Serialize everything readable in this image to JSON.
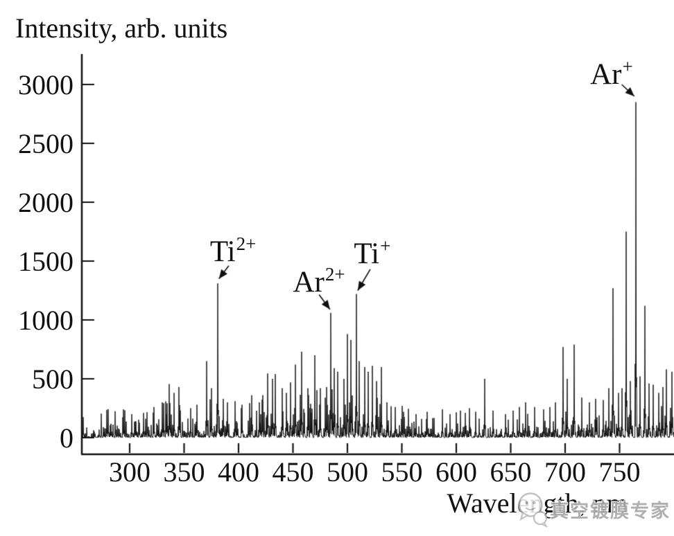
{
  "figure": {
    "type_note": "emission spectrum, single noisy trace, black on white, no grid, no legend"
  },
  "watermark": {
    "text": "真空镀膜专家",
    "icon": "wechat-chat-bubble-icon",
    "color": "#aaaaaa"
  },
  "chart_data": {
    "type": "line",
    "title": "",
    "ylabel": "Intensity, arb. units",
    "xlabel": "Wavelength, nm",
    "xlim": [
      256,
      800
    ],
    "ylim": [
      0,
      3260
    ],
    "xticks": [
      300,
      350,
      400,
      450,
      500,
      550,
      600,
      650,
      700,
      750
    ],
    "yticks": [
      0,
      500,
      1000,
      1500,
      2000,
      2500,
      3000
    ],
    "grid": false,
    "legend": null,
    "labeled_peaks": [
      {
        "id": "ti2plus",
        "label_base": "Ti",
        "label_sup": "2+",
        "wavelength": 381,
        "intensity": 1310,
        "label_at": {
          "wavelength": 373.8,
          "intensity": 1705
        },
        "arrow": {
          "from": {
            "wavelength": 391,
            "intensity": 1460
          },
          "to": {
            "wavelength": 382,
            "intensity": 1350
          }
        }
      },
      {
        "id": "ar2plus",
        "label_base": "Ar",
        "label_sup": "2+",
        "wavelength": 485,
        "intensity": 1060,
        "label_at": {
          "wavelength": 450,
          "intensity": 1450
        },
        "arrow": {
          "from": {
            "wavelength": 474,
            "intensity": 1215
          },
          "to": {
            "wavelength": 484,
            "intensity": 1090
          }
        }
      },
      {
        "id": "tiplus",
        "label_base": "Ti",
        "label_sup": "+",
        "wavelength": 508,
        "intensity": 1220,
        "label_at": {
          "wavelength": 506,
          "intensity": 1690
        },
        "arrow": {
          "from": {
            "wavelength": 521,
            "intensity": 1430
          },
          "to": {
            "wavelength": 509.5,
            "intensity": 1250
          }
        }
      },
      {
        "id": "arplus",
        "label_base": "Ar",
        "label_sup": "+",
        "wavelength": 765,
        "intensity": 2850,
        "label_at": {
          "wavelength": 723,
          "intensity": 3210
        },
        "arrow": {
          "from": {
            "wavelength": 752,
            "intensity": 3000
          },
          "to": {
            "wavelength": 763.5,
            "intensity": 2900
          }
        }
      }
    ],
    "secondary_peaks": [
      [
        294,
        240
      ],
      [
        302,
        200
      ],
      [
        313,
        210
      ],
      [
        322,
        260
      ],
      [
        330,
        300
      ],
      [
        336,
        455
      ],
      [
        341,
        380
      ],
      [
        345,
        430
      ],
      [
        356,
        250
      ],
      [
        362,
        280
      ],
      [
        371,
        650
      ],
      [
        375,
        420
      ],
      [
        386,
        330
      ],
      [
        390,
        300
      ],
      [
        397,
        310
      ],
      [
        403,
        280
      ],
      [
        412,
        360
      ],
      [
        419,
        300
      ],
      [
        427,
        545
      ],
      [
        431,
        500
      ],
      [
        434,
        540
      ],
      [
        440,
        420
      ],
      [
        444,
        380
      ],
      [
        448,
        470
      ],
      [
        452,
        620
      ],
      [
        458,
        730
      ],
      [
        464,
        420
      ],
      [
        470,
        700
      ],
      [
        475,
        420
      ],
      [
        481,
        430
      ],
      [
        488,
        590
      ],
      [
        491,
        560
      ],
      [
        497,
        500
      ],
      [
        500,
        880
      ],
      [
        503,
        830
      ],
      [
        511,
        650
      ],
      [
        516,
        600
      ],
      [
        519,
        560
      ],
      [
        523,
        610
      ],
      [
        527,
        480
      ],
      [
        531,
        600
      ],
      [
        536,
        300
      ],
      [
        544,
        260
      ],
      [
        556,
        245
      ],
      [
        563,
        200
      ],
      [
        573,
        220
      ],
      [
        587,
        240
      ],
      [
        594,
        200
      ],
      [
        604,
        230
      ],
      [
        612,
        250
      ],
      [
        618,
        220
      ],
      [
        626,
        500
      ],
      [
        634,
        230
      ],
      [
        645,
        200
      ],
      [
        652,
        230
      ],
      [
        658,
        260
      ],
      [
        664,
        300
      ],
      [
        672,
        260
      ],
      [
        680,
        240
      ],
      [
        686,
        260
      ],
      [
        691,
        300
      ],
      [
        698,
        770
      ],
      [
        702,
        500
      ],
      [
        708,
        790
      ],
      [
        715,
        340
      ],
      [
        722,
        300
      ],
      [
        728,
        330
      ],
      [
        735,
        320
      ],
      [
        740,
        420
      ],
      [
        744,
        1270
      ],
      [
        749,
        380
      ],
      [
        752,
        420
      ],
      [
        756,
        1750
      ],
      [
        760,
        480
      ],
      [
        769,
        520
      ],
      [
        773,
        1120
      ],
      [
        777,
        460
      ],
      [
        781,
        450
      ],
      [
        786,
        380
      ],
      [
        790,
        430
      ],
      [
        793,
        580
      ],
      [
        798,
        560
      ]
    ],
    "noise_floor": {
      "description": "dense stochastic baseline noise, typical 10-250 arb. units",
      "regions": [
        [
          256,
          272,
          180
        ],
        [
          272,
          330,
          260
        ],
        [
          330,
          352,
          380
        ],
        [
          352,
          368,
          200
        ],
        [
          368,
          392,
          320
        ],
        [
          392,
          420,
          300
        ],
        [
          420,
          462,
          420
        ],
        [
          462,
          530,
          420
        ],
        [
          530,
          552,
          300
        ],
        [
          552,
          600,
          170
        ],
        [
          600,
          622,
          230
        ],
        [
          622,
          645,
          180
        ],
        [
          645,
          688,
          200
        ],
        [
          688,
          800,
          280
        ]
      ]
    }
  }
}
